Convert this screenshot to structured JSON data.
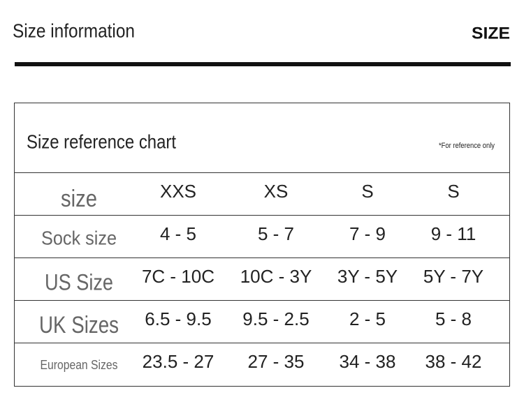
{
  "header": {
    "title": "Size information",
    "brand": "SIZE"
  },
  "table": {
    "title": "Size reference chart",
    "note": "*For reference only",
    "rows": [
      [
        "size",
        "XXS",
        "XS",
        "S",
        "S"
      ],
      [
        "Sock size",
        "4 - 5",
        "5 - 7",
        "7 - 9",
        "9 - 11"
      ],
      [
        "US Size",
        "7C - 10C",
        "10C - 3Y",
        "3Y - 5Y",
        "5Y - 7Y"
      ],
      [
        "UK Sizes",
        "6.5 - 9.5",
        "9.5 - 2.5",
        "2 - 5",
        "5 - 8"
      ],
      [
        "European Sizes",
        "23.5 - 27",
        "27 - 35",
        "34 - 38",
        "38 - 42"
      ]
    ]
  }
}
